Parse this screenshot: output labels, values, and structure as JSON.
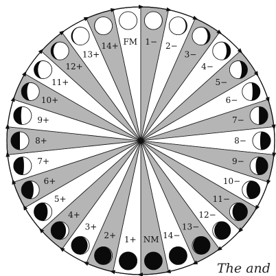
{
  "diagram": {
    "phases": [
      {
        "label": "FM",
        "lit": 1.0,
        "waxing": true
      },
      {
        "label": "1−",
        "lit": 0.98,
        "waxing": false
      },
      {
        "label": "2−",
        "lit": 0.93,
        "waxing": false
      },
      {
        "label": "3−",
        "lit": 0.86,
        "waxing": false
      },
      {
        "label": "4−",
        "lit": 0.78,
        "waxing": false
      },
      {
        "label": "5−",
        "lit": 0.68,
        "waxing": false
      },
      {
        "label": "6−",
        "lit": 0.58,
        "waxing": false
      },
      {
        "label": "7−",
        "lit": 0.5,
        "waxing": false
      },
      {
        "label": "8−",
        "lit": 0.42,
        "waxing": false
      },
      {
        "label": "9−",
        "lit": 0.32,
        "waxing": false
      },
      {
        "label": "10−",
        "lit": 0.24,
        "waxing": false
      },
      {
        "label": "11−",
        "lit": 0.16,
        "waxing": false
      },
      {
        "label": "12−",
        "lit": 0.09,
        "waxing": false
      },
      {
        "label": "13−",
        "lit": 0.04,
        "waxing": false
      },
      {
        "label": "14−",
        "lit": 0.01,
        "waxing": false
      },
      {
        "label": "NM",
        "lit": 0.0,
        "waxing": true
      },
      {
        "label": "1+",
        "lit": 0.01,
        "waxing": true
      },
      {
        "label": "2+",
        "lit": 0.04,
        "waxing": true
      },
      {
        "label": "3+",
        "lit": 0.09,
        "waxing": true
      },
      {
        "label": "4+",
        "lit": 0.16,
        "waxing": true
      },
      {
        "label": "5+",
        "lit": 0.24,
        "waxing": true
      },
      {
        "label": "6+",
        "lit": 0.32,
        "waxing": true
      },
      {
        "label": "7+",
        "lit": 0.42,
        "waxing": true
      },
      {
        "label": "8+",
        "lit": 0.5,
        "waxing": true
      },
      {
        "label": "9+",
        "lit": 0.58,
        "waxing": true
      },
      {
        "label": "10+",
        "lit": 0.68,
        "waxing": true
      },
      {
        "label": "11+",
        "lit": 0.78,
        "waxing": true
      },
      {
        "label": "12+",
        "lit": 0.86,
        "waxing": true
      },
      {
        "label": "13+",
        "lit": 0.93,
        "waxing": true
      },
      {
        "label": "14+",
        "lit": 0.98,
        "waxing": true
      }
    ],
    "colors": {
      "sector_gray": "#b5b5b5",
      "sector_white": "#ffffff",
      "line": "#111111",
      "moon_dark": "#0a0a0a",
      "moon_light": "#ffffff"
    }
  },
  "caption": "The and"
}
